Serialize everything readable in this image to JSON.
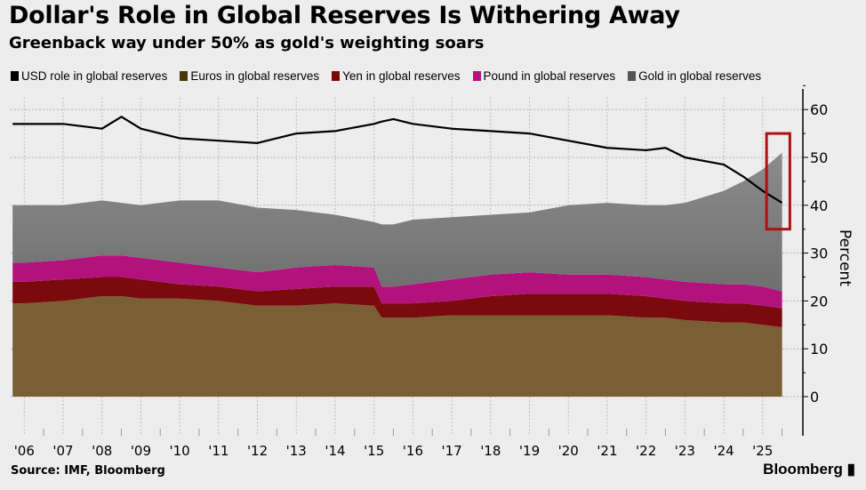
{
  "chart_data": {
    "type": "area",
    "title": "Dollar's Role in Global Reserves Is Withering Away",
    "subtitle": "Greenback way under 50% as gold's weighting soars",
    "ylabel": "Percent",
    "ylim": [
      0,
      62
    ],
    "yticks": [
      0,
      10,
      20,
      30,
      40,
      50,
      60
    ],
    "xlim": [
      2005.65,
      2025.6
    ],
    "xtick_labels": [
      "'06",
      "'07",
      "'08",
      "'09",
      "'10",
      "'11",
      "'12",
      "'13",
      "'14",
      "'15",
      "'16",
      "'17",
      "'18",
      "'19",
      "'20",
      "'21",
      "'22",
      "'23",
      "'24",
      "'25"
    ],
    "grid": true,
    "legend_position": "top",
    "x": [
      2005.7,
      2006,
      2007,
      2008,
      2008.5,
      2009,
      2010,
      2011,
      2012,
      2013,
      2014,
      2015,
      2015.2,
      2015.5,
      2016,
      2017,
      2018,
      2019,
      2020,
      2021,
      2022,
      2022.5,
      2023,
      2024,
      2024.5,
      2025,
      2025.5
    ],
    "stacked_series": [
      {
        "name": "Euros in global reserves",
        "color": "#7a5e34",
        "values": [
          19.5,
          19.5,
          20,
          21,
          21,
          20.5,
          20.5,
          20,
          19,
          19,
          19.5,
          19,
          16.5,
          16.5,
          16.5,
          17,
          17,
          17,
          17,
          17,
          16.5,
          16.5,
          16,
          15.5,
          15.5,
          15,
          14.5
        ]
      },
      {
        "name": "Yen in global reserves",
        "color": "#7a0a0c",
        "values": [
          4.5,
          4.5,
          4.5,
          4,
          4,
          4,
          3,
          3,
          3,
          3.5,
          3.5,
          4,
          3,
          3,
          3,
          3,
          4,
          4.5,
          4.5,
          4.5,
          4.5,
          4,
          4,
          4,
          4,
          4,
          4
        ]
      },
      {
        "name": "Pound in global reserves",
        "color": "#b3127c",
        "values": [
          4,
          4,
          4,
          4.5,
          4.5,
          4.5,
          4.5,
          4,
          4,
          4.5,
          4.5,
          4,
          3.5,
          3.5,
          4,
          4.5,
          4.5,
          4.5,
          4,
          4,
          4,
          4,
          4,
          4,
          4,
          4,
          3.5
        ]
      },
      {
        "name": "Gold in global reserves",
        "color": "#7f7f7f",
        "values": [
          12,
          12,
          11.5,
          11.5,
          11,
          11,
          13,
          14,
          13.5,
          12,
          10.5,
          9.5,
          13,
          13,
          13.5,
          13,
          12.5,
          12.5,
          14.5,
          15,
          15,
          15.5,
          16.5,
          19.5,
          21.5,
          24.5,
          29
        ]
      }
    ],
    "line_series": {
      "name": "USD role in global reserves",
      "color": "#000000",
      "values": [
        57,
        57,
        57,
        56,
        58.5,
        56,
        54,
        53.5,
        53,
        55,
        55.5,
        57,
        57.5,
        58,
        57,
        56,
        55.5,
        55,
        53.5,
        52,
        51.5,
        52,
        50,
        48.5,
        46,
        43,
        40.5
      ]
    },
    "highlight": {
      "color": "#b01010",
      "x_range": [
        2025.1,
        2025.7
      ],
      "y_range": [
        35,
        55
      ]
    },
    "source": "Source: IMF, Bloomberg",
    "brand": "Bloomberg"
  },
  "legend": [
    {
      "label": "USD role in global reserves",
      "color": "#000000"
    },
    {
      "label": "Euros in global reserves",
      "color": "#4a3410"
    },
    {
      "label": "Yen in global reserves",
      "color": "#7a0a0c"
    },
    {
      "label": "Pound in global reserves",
      "color": "#b3127c"
    },
    {
      "label": "Gold in global reserves",
      "color": "#555555"
    }
  ]
}
